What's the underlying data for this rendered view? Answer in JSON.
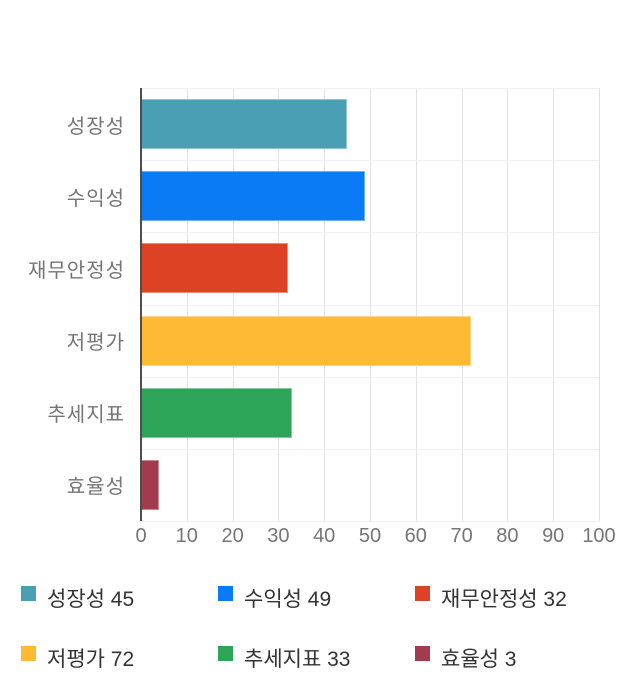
{
  "chart_data": {
    "type": "bar",
    "orientation": "horizontal",
    "title": "",
    "xlabel": "",
    "ylabel": "",
    "xlim": [
      0,
      100
    ],
    "x_ticks": [
      0,
      10,
      20,
      30,
      40,
      50,
      60,
      70,
      80,
      90,
      100
    ],
    "grid": true,
    "categories": [
      "성장성",
      "수익성",
      "재무안정성",
      "저평가",
      "추세지표",
      "효율성"
    ],
    "values": [
      45,
      49,
      32,
      72,
      33,
      3
    ],
    "bar_colors": [
      "#4a9fb5",
      "#0b7bf5",
      "#dd4224",
      "#fdba32",
      "#2da458",
      "#a23b4d"
    ],
    "legend_position": "bottom",
    "legend": [
      {
        "label": "성장성",
        "value": 45,
        "color": "#4a9fb5"
      },
      {
        "label": "수익성",
        "value": 49,
        "color": "#0b7bf5"
      },
      {
        "label": "재무안정성",
        "value": 32,
        "color": "#dd4224"
      },
      {
        "label": "저평가",
        "value": 72,
        "color": "#fdba32"
      },
      {
        "label": "추세지표",
        "value": 33,
        "color": "#2da458"
      },
      {
        "label": "효율성",
        "value": 3,
        "color": "#a23b4d"
      }
    ],
    "colors": {
      "gridline": "#e2e2e2",
      "band_separator": "#f0f0f0",
      "axis_line": "#4d4d4d",
      "axis_text": "#757575",
      "legend_text": "#333333",
      "background": "#ffffff"
    }
  }
}
